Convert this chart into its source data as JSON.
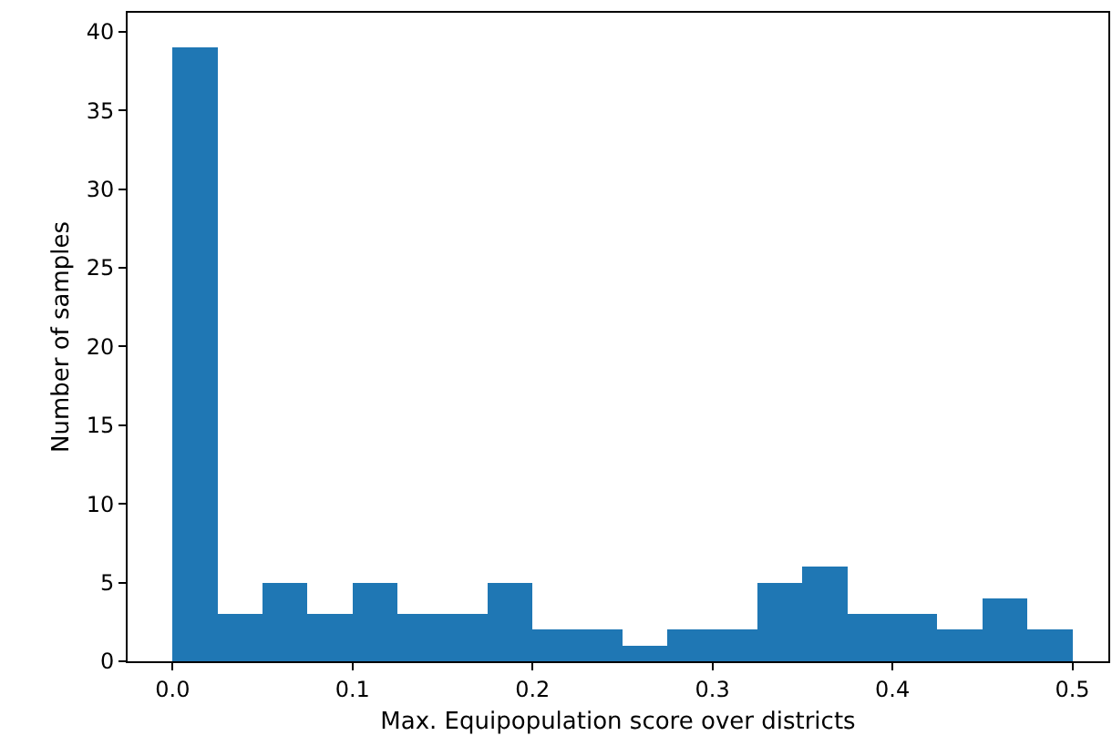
{
  "chart_data": {
    "type": "histogram",
    "xlabel": "Max. Equipopulation score over districts",
    "ylabel": "Number of samples",
    "bins": [
      0,
      0.025,
      0.05,
      0.075,
      0.1,
      0.125,
      0.15,
      0.175,
      0.2,
      0.225,
      0.25,
      0.275,
      0.3,
      0.325,
      0.35,
      0.375,
      0.4,
      0.425,
      0.45,
      0.475,
      0.5
    ],
    "values": [
      39,
      3,
      5,
      3,
      5,
      3,
      3,
      5,
      2,
      2,
      1,
      2,
      2,
      5,
      6,
      3,
      3,
      2,
      4,
      2
    ],
    "color": "#1f77b4",
    "xlim": [
      -0.025,
      0.52
    ],
    "xticks": [
      {
        "value": 0,
        "label": "0.0"
      },
      0.1,
      0.2,
      0.3,
      0.4,
      0.5
    ],
    "ylim": [
      0,
      41.2
    ],
    "yticks": [
      0,
      5,
      10,
      15,
      20,
      25,
      30,
      35,
      40
    ],
    "grid": false
  }
}
